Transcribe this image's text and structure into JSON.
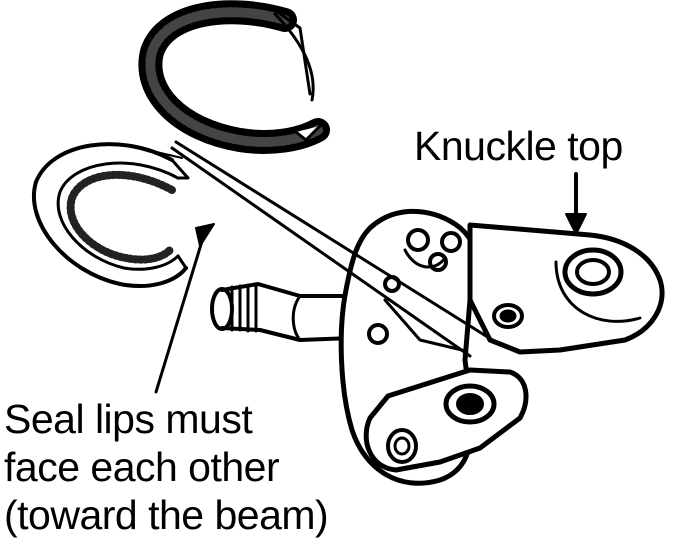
{
  "labels": {
    "knuckle_top": "Knuckle top",
    "seal_note": [
      "Seal lips must",
      "face each other",
      "(toward the beam)"
    ]
  },
  "colors": {
    "ink": "#000000",
    "paper": "#ffffff"
  }
}
